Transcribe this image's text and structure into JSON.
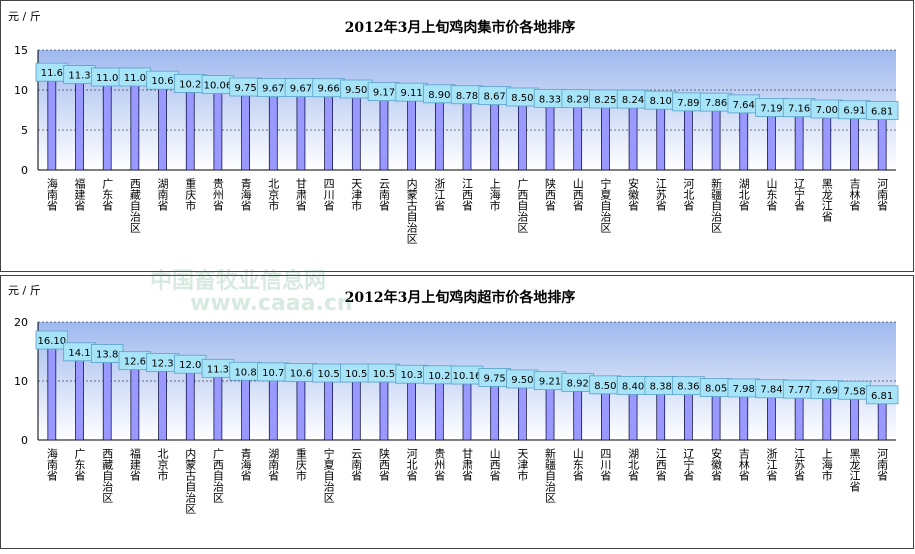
{
  "chart_data": [
    {
      "type": "bar",
      "title": "2012年3月上旬鸡肉集市价各地排序",
      "y_label": "元 / 斤",
      "categories": [
        "海南省",
        "福建省",
        "广东省",
        "西藏自治区",
        "湖南省",
        "重庆市",
        "贵州省",
        "青海省",
        "北京市",
        "甘肃省",
        "四川省",
        "天津市",
        "云南省",
        "内蒙古自治区",
        "浙江省",
        "江西省",
        "上海市",
        "广西自治区",
        "陕西省",
        "山西省",
        "宁夏自治区",
        "安徽省",
        "江苏省",
        "河北省",
        "新疆自治区",
        "湖北省",
        "山东省",
        "辽宁省",
        "黑龙江省",
        "吉林省",
        "河南省"
      ],
      "values": [
        11.6,
        11.3,
        11.0,
        11.0,
        10.6,
        10.2,
        10.06,
        9.75,
        9.67,
        9.67,
        9.66,
        9.5,
        9.17,
        9.11,
        8.9,
        8.78,
        8.67,
        8.5,
        8.33,
        8.29,
        8.25,
        8.24,
        8.1,
        7.89,
        7.86,
        7.64,
        7.19,
        7.16,
        7.0,
        6.91,
        6.81
      ],
      "value_labels": [
        "11.6",
        "11.3",
        "11.0",
        "11.0",
        "10.6",
        "10.2",
        "10.06",
        "9.75",
        "9.67",
        "9.67",
        "9.66",
        "9.50",
        "9.17",
        "9.11",
        "8.90",
        "8.78",
        "8.67",
        "8.50",
        "8.33",
        "8.29",
        "8.25",
        "8.24",
        "8.10",
        "7.89",
        "7.86",
        "7.64",
        "7.19",
        "7.16",
        "7.00",
        "6.91",
        "6.81"
      ],
      "color": "#9999ff",
      "ylim": [
        0,
        15
      ],
      "yticks": [
        0,
        5,
        10,
        15
      ],
      "grid": true
    },
    {
      "type": "bar",
      "title": "2012年3月上旬鸡肉超市价各地排序",
      "y_label": "元 / 斤",
      "categories": [
        "海南省",
        "广东省",
        "西藏自治区",
        "福建省",
        "北京市",
        "内蒙古自治区",
        "广西自治区",
        "青海省",
        "湖南省",
        "重庆市",
        "宁夏自治区",
        "云南省",
        "陕西省",
        "河北省",
        "贵州省",
        "甘肃省",
        "山西省",
        "天津市",
        "新疆自治区",
        "山东省",
        "四川省",
        "湖北省",
        "江西省",
        "辽宁省",
        "安徽省",
        "吉林省",
        "浙江省",
        "江苏省",
        "上海市",
        "黑龙江省",
        "河南省"
      ],
      "values": [
        16.1,
        14.1,
        13.8,
        12.6,
        12.3,
        12.0,
        11.3,
        10.8,
        10.7,
        10.6,
        10.5,
        10.5,
        10.5,
        10.3,
        10.2,
        10.16,
        9.75,
        9.5,
        9.21,
        8.92,
        8.5,
        8.4,
        8.38,
        8.36,
        8.05,
        7.98,
        7.84,
        7.77,
        7.69,
        7.58,
        6.81
      ],
      "value_labels": [
        "16.10",
        "14.1",
        "13.8",
        "12.6",
        "12.3",
        "12.0",
        "11.3",
        "10.8",
        "10.7",
        "10.6",
        "10.5",
        "10.5",
        "10.5",
        "10.3",
        "10.2",
        "10.16",
        "9.75",
        "9.50",
        "9.21",
        "8.92",
        "8.50",
        "8.40",
        "8.38",
        "8.36",
        "8.05",
        "7.98",
        "7.84",
        "7.77",
        "7.69",
        "7.58",
        "6.81"
      ],
      "color": "#9999ff",
      "ylim": [
        0,
        20
      ],
      "yticks": [
        0,
        10,
        20
      ],
      "grid": true
    }
  ],
  "watermark": {
    "name": "中国畜牧业信息网",
    "url": "www.caaa.cn"
  }
}
